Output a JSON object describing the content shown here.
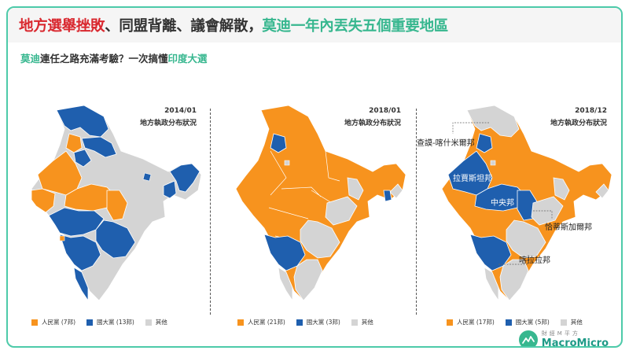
{
  "header": {
    "title_red": "地方選舉挫敗",
    "title_mid": "、同盟背離、議會解散，",
    "title_green": "莫迪一年內丟失五個重要地區"
  },
  "subtitle": {
    "green1": "莫迪",
    "dark1": "連任之路充滿考驗？一次搞懂",
    "green2": "印度大選"
  },
  "colors": {
    "bjp": "#f7931e",
    "inc": "#1f5fae",
    "other": "#d4d4d4",
    "accent": "#37b78f",
    "title_red": "#d9282f"
  },
  "panels": [
    {
      "date": "2014/01",
      "caption": "地方執政分布狀況",
      "legend": [
        "人民黨 (7邦)",
        "國大黨 (13邦)",
        "其他"
      ]
    },
    {
      "date": "2018/01",
      "caption": "地方執政分布狀況",
      "legend": [
        "人民黨 (21邦)",
        "國大黨 (3邦)",
        "其他"
      ]
    },
    {
      "date": "2018/12",
      "caption": "地方執政分布狀況",
      "legend": [
        "人民黨 (17邦)",
        "國大黨 (5邦)",
        "其他"
      ],
      "callouts": {
        "kashmir": "查謨-喀什米爾邦",
        "rajasthan": "拉賈斯坦邦",
        "mp": "中央邦",
        "chhattisgarh": "恰蒂斯加爾邦",
        "karnataka": "喀拉拉邦"
      }
    }
  ],
  "logo": {
    "cn": "財經M平方",
    "en": "MacroMicro"
  }
}
